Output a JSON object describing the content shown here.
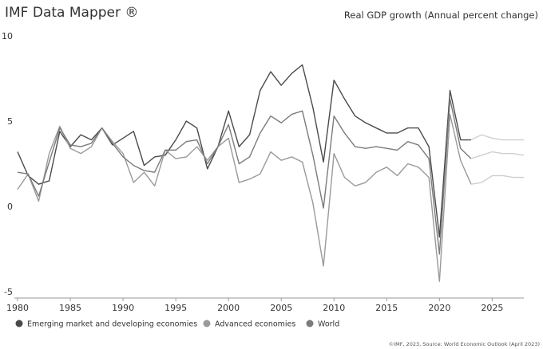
{
  "header": {
    "title": "IMF Data Mapper ®",
    "subtitle": "Real GDP growth (Annual percent change)"
  },
  "footer": {
    "source": "©IMF, 2023, Source: World Economic Outlook (April 2023)"
  },
  "chart_data": {
    "type": "line",
    "title": "Real GDP growth (Annual percent change)",
    "xlabel": "",
    "ylabel": "",
    "xlim": [
      1980,
      2028
    ],
    "ylim": [
      -5,
      10
    ],
    "x_ticks": [
      1980,
      1985,
      1990,
      1995,
      2000,
      2005,
      2010,
      2015,
      2020,
      2025
    ],
    "y_ticks": [
      -5,
      0,
      5,
      10
    ],
    "grid": false,
    "legend_position": "bottom-left",
    "projection_start": 2023,
    "x": [
      1980,
      1981,
      1982,
      1983,
      1984,
      1985,
      1986,
      1987,
      1988,
      1989,
      1990,
      1991,
      1992,
      1993,
      1994,
      1995,
      1996,
      1997,
      1998,
      1999,
      2000,
      2001,
      2002,
      2003,
      2004,
      2005,
      2006,
      2007,
      2008,
      2009,
      2010,
      2011,
      2012,
      2013,
      2014,
      2015,
      2016,
      2017,
      2018,
      2019,
      2020,
      2021,
      2022,
      2023,
      2024,
      2025,
      2026,
      2027,
      2028
    ],
    "series": [
      {
        "name": "Emerging market and developing economies",
        "color": "#4a4a4a",
        "values": [
          3.2,
          1.8,
          1.3,
          1.5,
          4.4,
          3.5,
          4.2,
          3.9,
          4.6,
          3.6,
          4.0,
          4.4,
          2.4,
          2.9,
          3.0,
          3.9,
          5.0,
          4.6,
          2.2,
          3.5,
          5.6,
          3.5,
          4.2,
          6.8,
          7.9,
          7.1,
          7.8,
          8.3,
          5.8,
          2.6,
          7.4,
          6.3,
          5.3,
          4.9,
          4.6,
          4.3,
          4.3,
          4.6,
          4.6,
          3.5,
          -1.8,
          6.8,
          3.9,
          3.9,
          4.2,
          4.0,
          3.9,
          3.9,
          3.9
        ]
      },
      {
        "name": "Advanced economies",
        "color": "#9a9a9a",
        "values": [
          1.0,
          1.9,
          0.3,
          3.1,
          4.7,
          3.4,
          3.1,
          3.5,
          4.6,
          3.8,
          3.1,
          1.4,
          2.0,
          1.2,
          3.3,
          2.8,
          2.9,
          3.5,
          2.7,
          3.5,
          4.0,
          1.4,
          1.6,
          1.9,
          3.2,
          2.7,
          2.9,
          2.6,
          0.2,
          -3.5,
          3.1,
          1.7,
          1.2,
          1.4,
          2.0,
          2.3,
          1.8,
          2.5,
          2.3,
          1.7,
          -4.4,
          5.4,
          2.7,
          1.3,
          1.4,
          1.8,
          1.8,
          1.7,
          1.7
        ]
      },
      {
        "name": "World",
        "color": "#7b7b7b",
        "values": [
          2.0,
          1.9,
          0.6,
          2.6,
          4.6,
          3.6,
          3.5,
          3.7,
          4.6,
          3.7,
          2.9,
          2.4,
          2.1,
          2.0,
          3.3,
          3.3,
          3.8,
          3.9,
          2.5,
          3.5,
          4.8,
          2.5,
          2.9,
          4.3,
          5.3,
          4.9,
          5.4,
          5.6,
          3.0,
          -0.1,
          5.3,
          4.3,
          3.5,
          3.4,
          3.5,
          3.4,
          3.3,
          3.8,
          3.6,
          2.8,
          -2.8,
          6.3,
          3.4,
          2.8,
          3.0,
          3.2,
          3.1,
          3.1,
          3.0
        ]
      }
    ]
  }
}
